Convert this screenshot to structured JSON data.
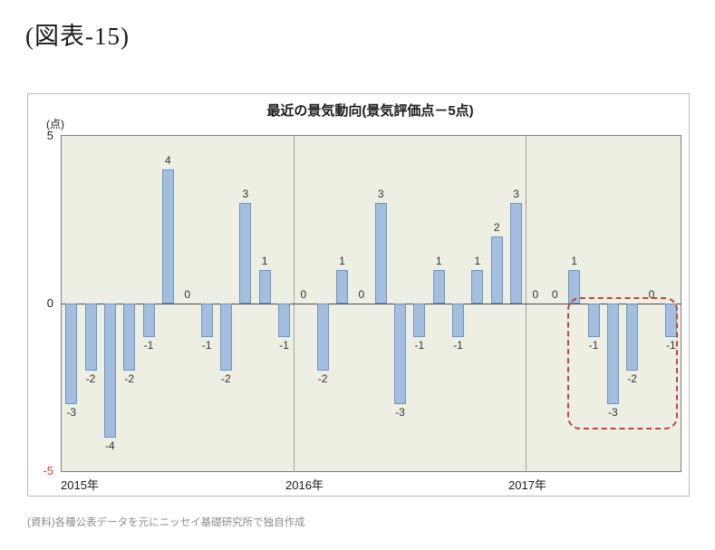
{
  "figure_label": "(図表-15)",
  "source_note": "(資料)各種公表データを元にニッセイ基礎研究所で独自作成",
  "chart_data": {
    "type": "bar",
    "title": "最近の景気動向(景気評価点－5点)",
    "unit_label": "(点)",
    "ylim": [
      -5,
      5
    ],
    "y_ticks": [
      "5",
      "0",
      "-5"
    ],
    "grid": "vertical year separators only",
    "legend": "none",
    "year_groups": [
      {
        "label": "2015年",
        "count": 12
      },
      {
        "label": "2016年",
        "count": 12
      },
      {
        "label": "2017年",
        "count": 8
      }
    ],
    "values": [
      -3,
      -2,
      -4,
      -2,
      -1,
      4,
      0,
      -1,
      -2,
      3,
      1,
      -1,
      0,
      -2,
      1,
      0,
      3,
      -3,
      -1,
      1,
      -1,
      1,
      2,
      3,
      0,
      0,
      1,
      -1,
      -3,
      -2,
      0,
      -1
    ],
    "highlight": {
      "type": "red-dashed-rounded-box",
      "covers_last_n_bars": 5
    },
    "colors": {
      "bar_fill": "#a3bede",
      "bar_border": "#6f94c0",
      "negative_label": "#e8392e",
      "label_color": "#333333",
      "plot_bg": "#ecefe2",
      "highlight_box": "#c0453c"
    }
  }
}
